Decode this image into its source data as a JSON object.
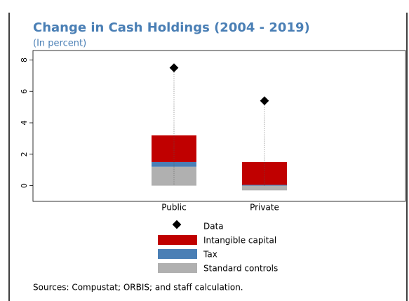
{
  "chart_data": {
    "type": "stacked_bar_with_markers",
    "title": "Change in Cash Holdings (2004 - 2019)",
    "subtitle": "(In percent)",
    "categories": [
      "Public",
      "Private"
    ],
    "series": [
      {
        "name": "Standard controls",
        "color": "#b0b0b0",
        "values": [
          1.2,
          -0.3
        ]
      },
      {
        "name": "Tax",
        "color": "#4a7fb5",
        "values": [
          0.3,
          0.05
        ]
      },
      {
        "name": "Intangible capital",
        "color": "#c00000",
        "values": [
          1.7,
          1.45
        ]
      }
    ],
    "markers": {
      "name": "Data",
      "color": "#000000",
      "values": [
        7.5,
        5.4
      ]
    },
    "ylim": [
      -1,
      8.6
    ],
    "yticks": [
      0,
      2,
      4,
      6,
      8
    ],
    "note": "Sources: Compustat; ORBIS; and staff calculation."
  }
}
